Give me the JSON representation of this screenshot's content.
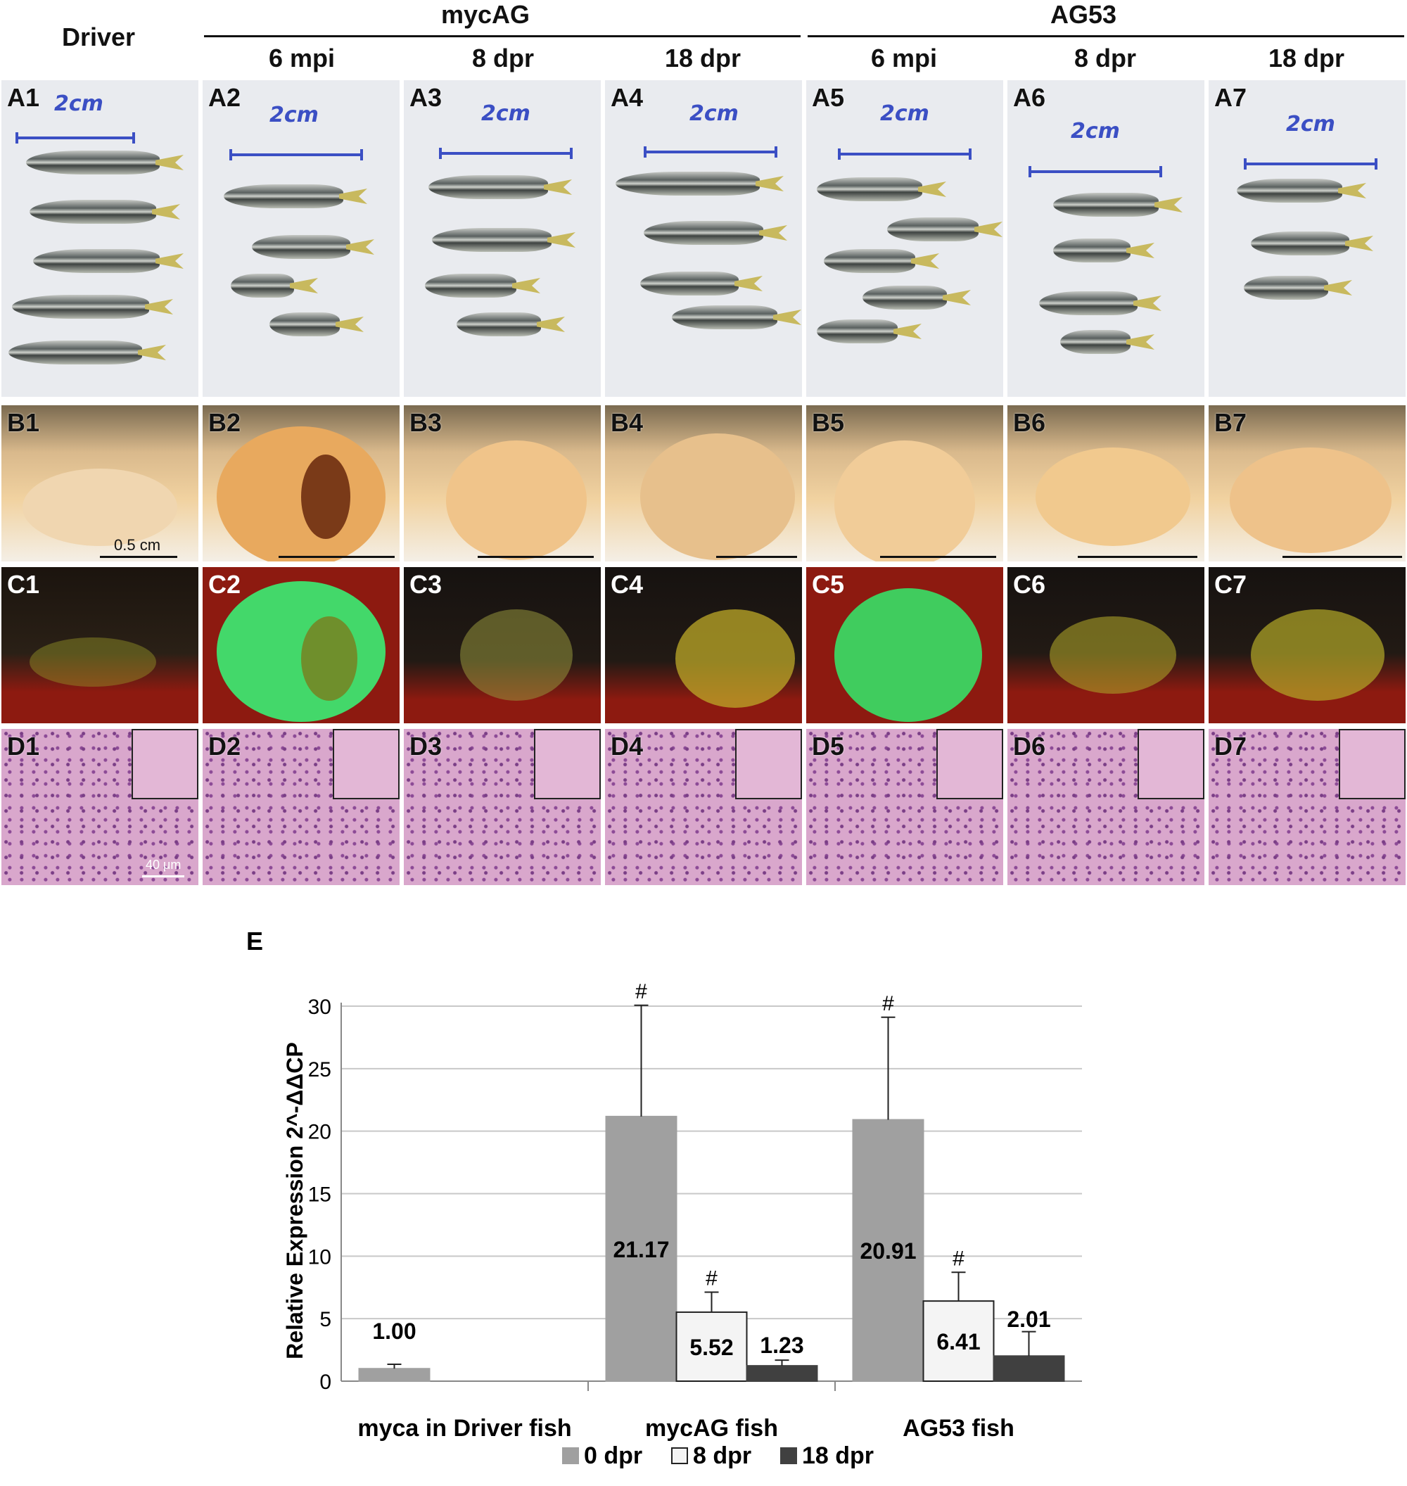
{
  "headers": {
    "driver": "Driver",
    "mycag": "mycAG",
    "ag53": "AG53",
    "columns": [
      "6 mpi",
      "8 dpr",
      "18 dpr",
      "6 mpi",
      "8 dpr",
      "18 dpr"
    ]
  },
  "row_a": {
    "labels": [
      "A1",
      "A2",
      "A3",
      "A4",
      "A5",
      "A6",
      "A7"
    ],
    "pen_note": "2cm"
  },
  "row_b": {
    "labels": [
      "B1",
      "B2",
      "B3",
      "B4",
      "B5",
      "B6",
      "B7"
    ],
    "scale_label": "0.5 cm"
  },
  "row_c": {
    "labels": [
      "C1",
      "C2",
      "C3",
      "C4",
      "C5",
      "C6",
      "C7"
    ]
  },
  "row_d": {
    "labels": [
      "D1",
      "D2",
      "D3",
      "D4",
      "D5",
      "D6",
      "D7"
    ],
    "scale_label": "40 μm"
  },
  "colors": {
    "dpr0": "#a0a0a0",
    "dpr8": "#f4f4f4",
    "dpr18": "#404040",
    "pen": "#3b4fc4"
  },
  "chart_data": {
    "type": "bar",
    "panel_label": "E",
    "ylabel": "Relative Expression 2^-ΔΔCP",
    "ylim": [
      0,
      30
    ],
    "yticks": [
      0,
      5,
      10,
      15,
      20,
      25,
      30
    ],
    "grid": true,
    "legend_position": "bottom",
    "categories": [
      "myca in Driver fish",
      "mycAG fish",
      "AG53 fish"
    ],
    "series": [
      {
        "name": "0 dpr",
        "values": [
          1.0,
          21.17,
          20.91
        ],
        "errors": [
          0.35,
          8.9,
          8.2
        ],
        "labels": [
          "1.00",
          "21.17",
          "20.91"
        ],
        "marks": [
          "",
          "#",
          "#"
        ]
      },
      {
        "name": "8 dpr",
        "values": [
          null,
          5.52,
          6.41
        ],
        "errors": [
          null,
          1.6,
          2.3
        ],
        "labels": [
          "",
          "5.52",
          "6.41"
        ],
        "marks": [
          "",
          "#",
          "#"
        ]
      },
      {
        "name": "18 dpr",
        "values": [
          null,
          1.23,
          2.01
        ],
        "errors": [
          null,
          0.45,
          1.95
        ],
        "labels": [
          "",
          "1.23",
          "2.01"
        ],
        "marks": [
          "",
          "",
          ""
        ]
      }
    ]
  }
}
